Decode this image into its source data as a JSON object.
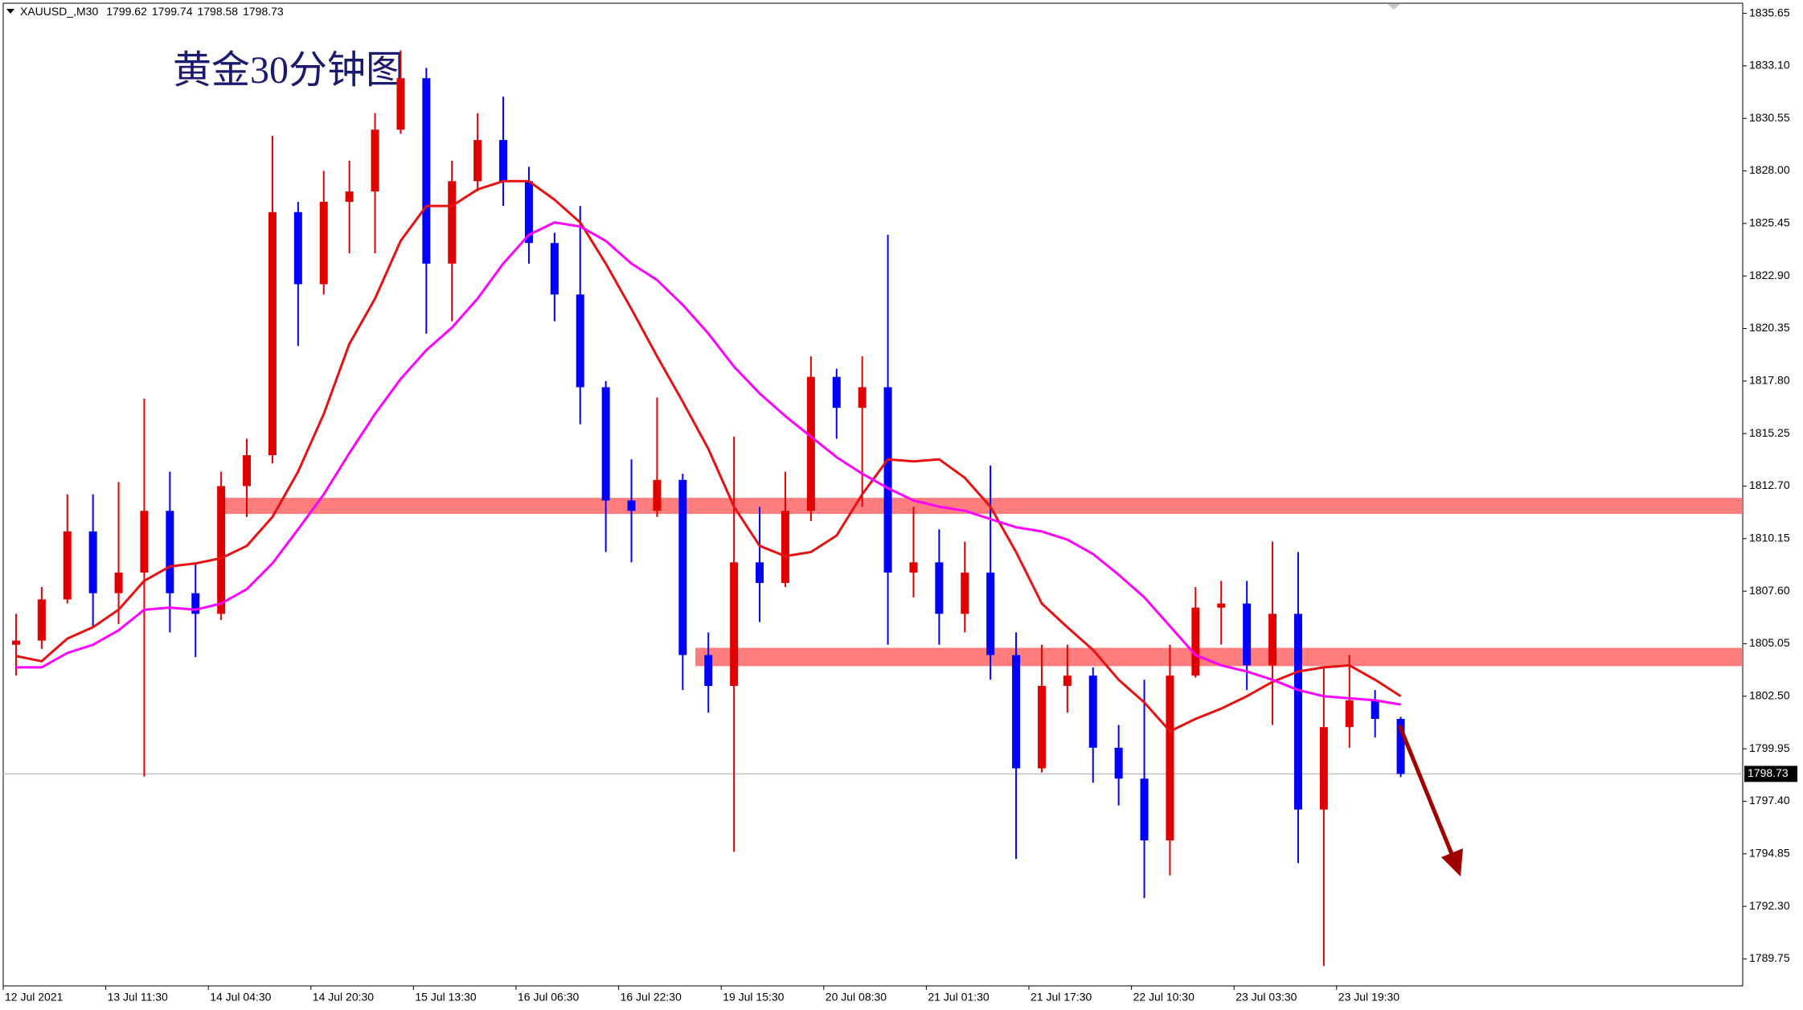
{
  "chart_data": {
    "type": "candlestick",
    "title": "黄金30分钟图",
    "symbol": "XAUUSD_,M30",
    "header_values": [
      1799.62,
      1799.74,
      1798.58,
      1798.73
    ],
    "categories": [
      "12 Jul 2021",
      null,
      null,
      null,
      "13 Jul 11:30",
      null,
      null,
      null,
      "14 Jul 04:30",
      null,
      null,
      null,
      "14 Jul 20:30",
      null,
      null,
      null,
      "15 Jul 13:30",
      null,
      null,
      null,
      "16 Jul 06:30",
      null,
      null,
      null,
      "16 Jul 22:30",
      null,
      null,
      null,
      "19 Jul 15:30",
      null,
      null,
      null,
      "20 Jul 08:30",
      null,
      null,
      null,
      "21 Jul 01:30",
      null,
      null,
      null,
      "21 Jul 17:30",
      null,
      null,
      null,
      "22 Jul 10:30",
      null,
      null,
      null,
      "23 Jul 03:30",
      null,
      null,
      null,
      "23 Jul 19:30",
      null,
      null
    ],
    "open": [
      1805,
      1805.2,
      1807.2,
      1810.5,
      1807.5,
      1808.5,
      1811.5,
      1807.5,
      1806.5,
      1812.7,
      1814.2,
      1826,
      1822.5,
      1826.5,
      1827,
      1830,
      1832.5,
      1823.5,
      1827.5,
      1829.5,
      1827.5,
      1824.5,
      1822,
      1817.5,
      1812,
      1811.5,
      1813,
      1804.5,
      1803,
      1809,
      1808,
      1811.5,
      1818,
      1816.5,
      1817.5,
      1808.5,
      1809,
      1806.5,
      1808.5,
      1804.5,
      1799,
      1803,
      1803.5,
      1800,
      1798.5,
      1795.5,
      1803.5,
      1806.8,
      1807,
      1804,
      1806.5,
      1797,
      1801,
      1802.3,
      1801.4
    ],
    "high": [
      1806.5,
      1807.8,
      1812.3,
      1812.3,
      1812.9,
      1816.95,
      1813.4,
      1808.95,
      1813.4,
      1815,
      1829.7,
      1826.5,
      1828,
      1828.5,
      1830.8,
      1833.85,
      1833,
      1828.5,
      1830.8,
      1831.6,
      1828.2,
      1825,
      1826.3,
      1817.8,
      1814,
      1817,
      1813.3,
      1805.6,
      1815.1,
      1811.7,
      1813.4,
      1819,
      1818.4,
      1819,
      1824.9,
      1811.7,
      1810.6,
      1810,
      1813.7,
      1805.6,
      1805,
      1805,
      1803.9,
      1801.1,
      1803.3,
      1805,
      1807.8,
      1808.1,
      1808.1,
      1810,
      1809.5,
      1803.9,
      1804.5,
      1802.8,
      1801.5
    ],
    "low": [
      1803.5,
      1804.8,
      1807,
      1805.8,
      1806,
      1798.6,
      1805.6,
      1804.4,
      1806.2,
      1811.2,
      1813.8,
      1819.5,
      1822,
      1824,
      1824,
      1829.8,
      1820.1,
      1820.7,
      1827,
      1826.3,
      1823.5,
      1820.7,
      1815.7,
      1809.5,
      1809,
      1811.2,
      1802.8,
      1801.7,
      1794.95,
      1806.1,
      1807.8,
      1811,
      1815,
      1811.7,
      1805,
      1807.3,
      1805,
      1805.6,
      1803.3,
      1794.6,
      1798.8,
      1801.7,
      1798.3,
      1797.2,
      1792.7,
      1793.8,
      1803.4,
      1805,
      1802.8,
      1801.1,
      1794.4,
      1789.4,
      1800,
      1800.5,
      1798.58
    ],
    "close": [
      1805.2,
      1807.2,
      1810.5,
      1807.5,
      1808.5,
      1811.5,
      1807.5,
      1806.5,
      1812.7,
      1814.2,
      1826,
      1822.5,
      1826.5,
      1827,
      1830,
      1832.5,
      1823.5,
      1827.5,
      1829.5,
      1827.5,
      1824.5,
      1822,
      1817.5,
      1812,
      1811.5,
      1813,
      1804.5,
      1803,
      1809,
      1808,
      1811.5,
      1818,
      1816.5,
      1817.5,
      1808.5,
      1809,
      1806.5,
      1808.5,
      1804.5,
      1799,
      1803,
      1803.5,
      1800,
      1798.5,
      1795.5,
      1803.5,
      1806.8,
      1807,
      1804,
      1806.5,
      1797,
      1801,
      1802.3,
      1801.4,
      1798.73
    ],
    "up_color": "#e00000",
    "down_color": "#0000ff",
    "lines": [
      {
        "color": "#e81010",
        "values": [
          1804.45,
          1804.2,
          1805.3,
          1805.85,
          1806.7,
          1808.1,
          1808.8,
          1808.95,
          1809.2,
          1809.8,
          1811.2,
          1813.4,
          1816.2,
          1819.6,
          1821.8,
          1824.6,
          1826.3,
          1826.3,
          1827.1,
          1827.5,
          1827.5,
          1826.6,
          1825.5,
          1823.5,
          1821.3,
          1819,
          1816.8,
          1814.5,
          1811.7,
          1809.8,
          1809.3,
          1809.5,
          1810.3,
          1812.3,
          1814,
          1813.9,
          1814,
          1813.1,
          1811.7,
          1809.5,
          1807,
          1805.85,
          1804.75,
          1803.3,
          1802.2,
          1800.8,
          1801.4,
          1801.9,
          1802.5,
          1803.2,
          1803.7,
          1803.9,
          1804,
          1803.3,
          1802.5
        ]
      },
      {
        "color": "#ff00ff",
        "values": [
          1803.9,
          1803.9,
          1804.6,
          1805,
          1805.7,
          1806.7,
          1806.8,
          1806.7,
          1807,
          1807.7,
          1808.95,
          1810.6,
          1812.3,
          1814.3,
          1816.2,
          1817.9,
          1819.3,
          1820.4,
          1821.8,
          1823.5,
          1824.9,
          1825.5,
          1825.3,
          1824.6,
          1823.5,
          1822.7,
          1821.5,
          1820.1,
          1818.5,
          1817.2,
          1816.1,
          1815.1,
          1814.1,
          1813.3,
          1812.6,
          1812,
          1811.7,
          1811.5,
          1811.1,
          1810.7,
          1810.5,
          1810.1,
          1809.4,
          1808.4,
          1807.3,
          1805.9,
          1804.5,
          1804,
          1803.7,
          1803.3,
          1802.8,
          1802.5,
          1802.4,
          1802.3,
          1802.1
        ]
      }
    ],
    "zones": [
      {
        "from": 1811.35,
        "to": 1812.13,
        "color": "#ff6666"
      },
      {
        "from": 1803.96,
        "to": 1804.85,
        "color": "#ff6666"
      }
    ],
    "last_price": 1798.73,
    "ylim": [
      1788.44,
      1836.14
    ],
    "yticks": [
      1789.75,
      {
        "value": 1792.3,
        "label": "1792.30"
      },
      1794.85,
      {
        "value": 1797.4,
        "label": "1797.40"
      },
      1799.95,
      {
        "value": 1802.5,
        "label": "1802.50"
      },
      1805.05,
      {
        "value": 1807.6,
        "label": "1807.60"
      },
      1810.15,
      {
        "value": 1812.7,
        "label": "1812.70"
      },
      1815.25,
      {
        "value": 1817.8,
        "label": "1817.80"
      },
      1820.35,
      {
        "value": 1822.9,
        "label": "1822.90"
      },
      1825.45,
      {
        "value": 1828,
        "label": "1828.00"
      },
      1830.55,
      {
        "value": 1833.1,
        "label": "1833.10"
      },
      1835.65
    ],
    "grid": false
  }
}
